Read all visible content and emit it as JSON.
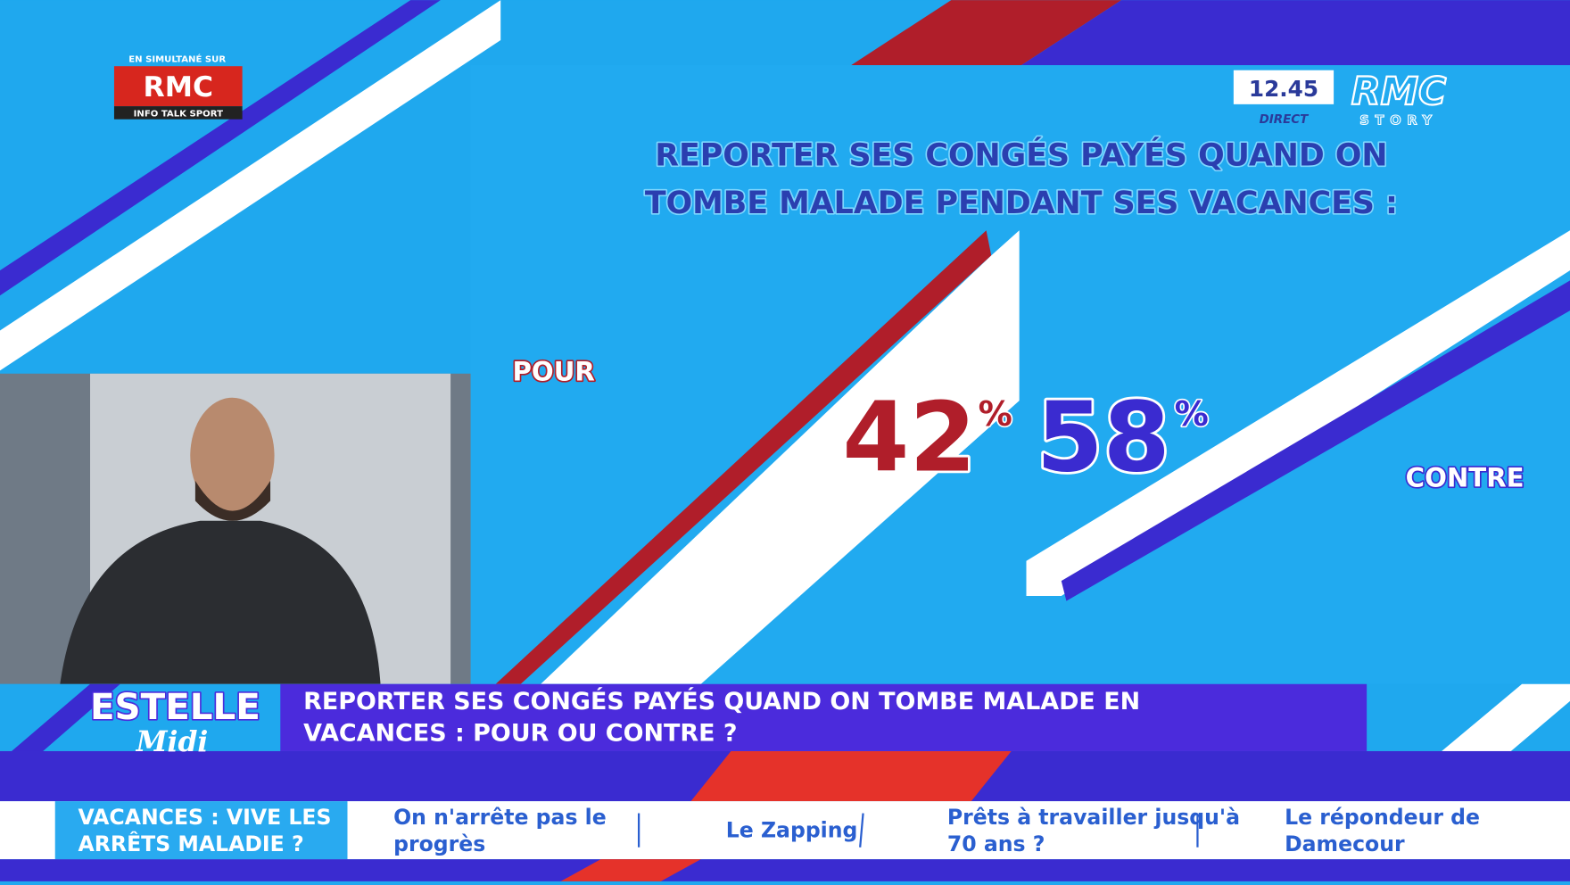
{
  "channel_logo": {
    "top": "EN SIMULTANÉ SUR",
    "name": "RMC",
    "bottom": "INFO TALK SPORT"
  },
  "clock": {
    "time": "12.45",
    "status": "DIRECT",
    "brand": "RMC",
    "brand_sub": "STORY"
  },
  "poll": {
    "title_lines": [
      "REPORTER SES CONGÉS PAYÉS QUAND ON",
      "TOMBE MALADE PENDANT SES VACANCES :"
    ],
    "results": [
      {
        "label": "POUR",
        "value": 42,
        "unit": "%"
      },
      {
        "label": "CONTRE",
        "value": 58,
        "unit": "%"
      }
    ]
  },
  "banner": {
    "show_name": "ESTELLE",
    "show_sub": "Midi",
    "headline_lines": [
      "REPORTER SES CONGÉS PAYÉS QUAND ON TOMBE MALADE EN",
      "VACANCES : POUR OU CONTRE ?"
    ]
  },
  "ticker": {
    "current_lines": [
      "VACANCES : VIVE LES",
      "ARRÊTS MALADIE ?"
    ],
    "items": [
      [
        "On n'arrête pas le",
        "progrès"
      ],
      [
        "Le Zapping"
      ],
      [
        "Prêts à travailler jusqu'à",
        "70 ans ?"
      ],
      [
        "Le répondeur de",
        "Damecour"
      ]
    ]
  }
}
